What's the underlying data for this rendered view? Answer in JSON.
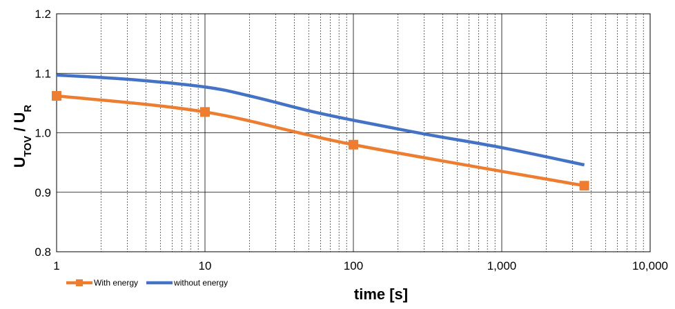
{
  "chart_data": {
    "type": "line",
    "xscale": "log",
    "xlim": [
      1,
      10000
    ],
    "ylim": [
      0.8,
      1.2
    ],
    "xticks": [
      1,
      10,
      100,
      1000,
      10000
    ],
    "xtick_labels": [
      "1",
      "10",
      "100",
      "1,000",
      "10,000"
    ],
    "yticks": [
      0.8,
      0.9,
      1.0,
      1.1,
      1.2
    ],
    "ytick_labels": [
      "0.8",
      "0.9",
      "1.0",
      "1.1",
      "1.2"
    ],
    "xlabel": "time [s]",
    "ylabel": {
      "main": "U",
      "sub1": "TOV",
      "sep": " / U",
      "sub2": "R"
    },
    "grid": {
      "major": "solid",
      "minor_x": "dashed"
    },
    "legend_position": "bottom-left",
    "series": [
      {
        "name": "With energy",
        "color": "#ED7D31",
        "marker": "square",
        "x": [
          1,
          10,
          100,
          3600
        ],
        "y": [
          1.062,
          1.035,
          0.98,
          0.911
        ]
      },
      {
        "name": "without energy",
        "color": "#4472C4",
        "marker": "none",
        "x": [
          1,
          3,
          10,
          20,
          50,
          100,
          300,
          1000,
          3600
        ],
        "y": [
          1.097,
          1.09,
          1.077,
          1.062,
          1.037,
          1.021,
          0.998,
          0.975,
          0.946
        ]
      }
    ]
  }
}
